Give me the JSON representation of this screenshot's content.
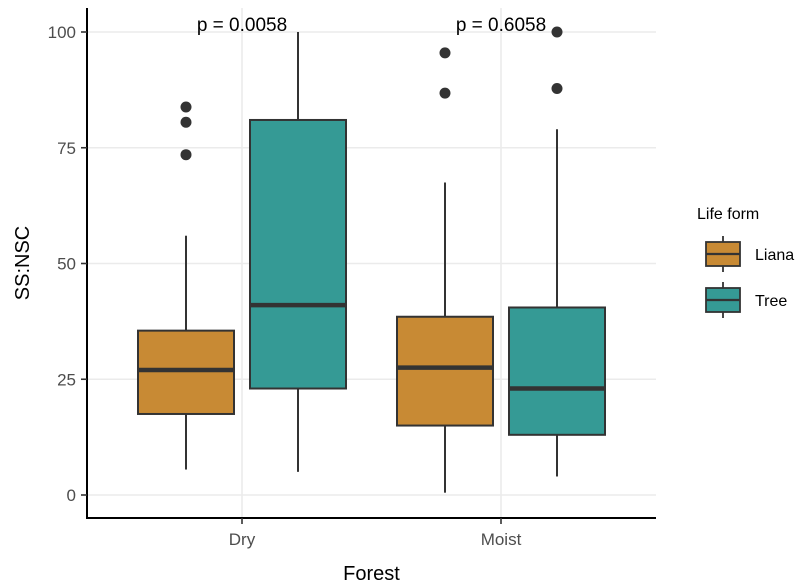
{
  "chart_data": {
    "type": "boxplot",
    "xlabel": "Forest",
    "ylabel": "SS:NSC",
    "ylim": [
      -5,
      105
    ],
    "y_ticks": [
      0,
      25,
      50,
      75,
      100
    ],
    "categories": [
      "Dry",
      "Moist"
    ],
    "grid": true,
    "legend": {
      "title": "Life form",
      "position": "right",
      "entries": [
        {
          "name": "Liana",
          "color": "#C88A34"
        },
        {
          "name": "Tree",
          "color": "#359A95"
        }
      ]
    },
    "annotations": [
      {
        "category": "Dry",
        "text": "p = 0.0058",
        "y": 100
      },
      {
        "category": "Moist",
        "text": "p = 0.6058",
        "y": 100
      }
    ],
    "boxes": [
      {
        "category": "Dry",
        "group": "Liana",
        "min": 5.5,
        "q1": 17.5,
        "median": 27,
        "q3": 35.5,
        "max": 56,
        "outliers": [
          73.5,
          80.5,
          83.8
        ]
      },
      {
        "category": "Dry",
        "group": "Tree",
        "min": 5,
        "q1": 23,
        "median": 41,
        "q3": 81,
        "max": 100,
        "outliers": []
      },
      {
        "category": "Moist",
        "group": "Liana",
        "min": 0.5,
        "q1": 15,
        "median": 27.5,
        "q3": 38.5,
        "max": 67.5,
        "outliers": [
          86.8,
          95.5
        ]
      },
      {
        "category": "Moist",
        "group": "Tree",
        "min": 4,
        "q1": 13,
        "median": 23,
        "q3": 40.5,
        "max": 79,
        "outliers": [
          87.8,
          100
        ]
      }
    ]
  }
}
